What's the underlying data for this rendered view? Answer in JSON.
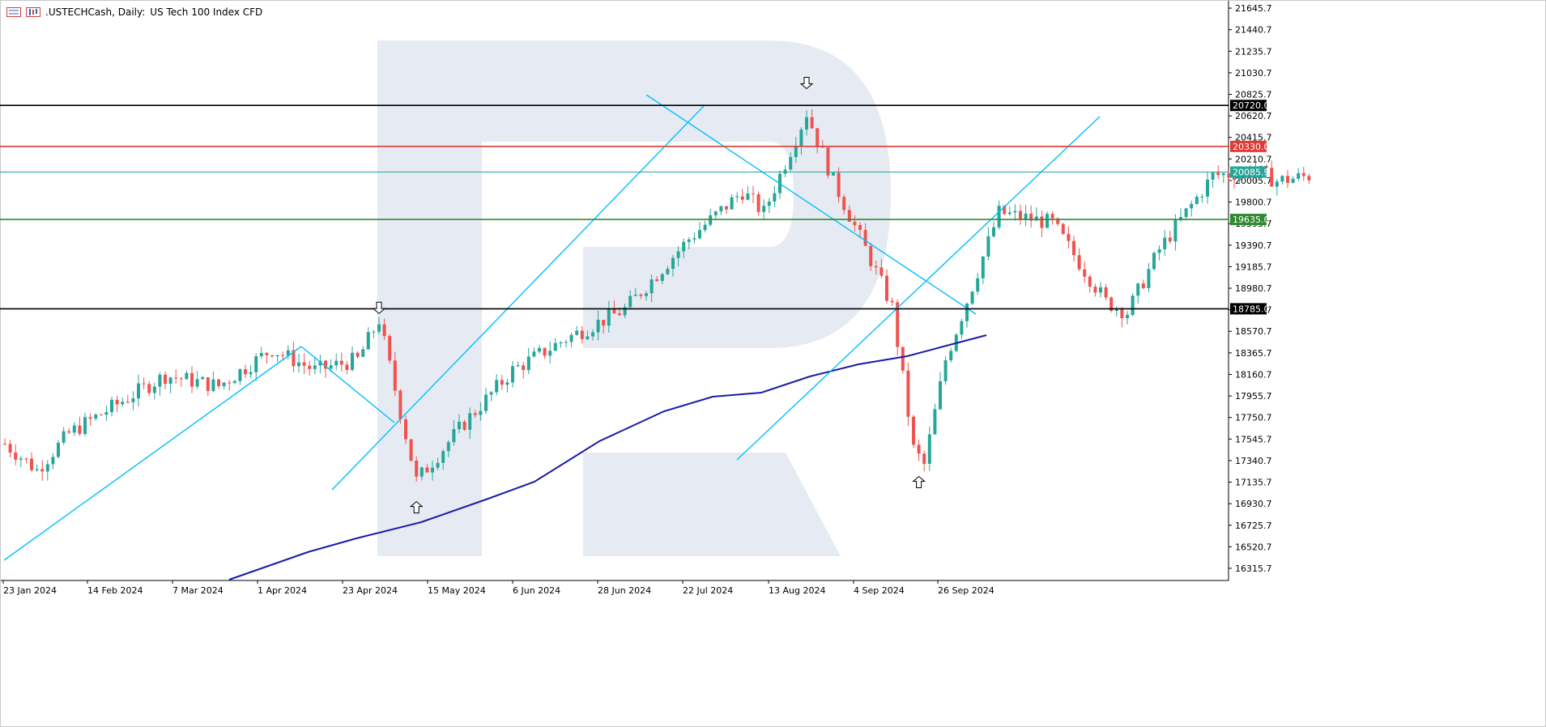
{
  "header": {
    "symbol": ".USTECHCash, Daily:",
    "description": "US Tech 100 Index CFD"
  },
  "colors": {
    "bull": "#26a69a",
    "bear": "#ef5350",
    "trend": "#00bfff",
    "ma": "#1a1aaa",
    "watermark": "#e6ebf3"
  },
  "chart_data": {
    "type": "candlestick",
    "y_ticks": [
      "21645.7",
      "21440.7",
      "21235.7",
      "21030.7",
      "20825.7",
      "20620.7",
      "20415.7",
      "20210.7",
      "20005.7",
      "19800.7",
      "19595.7",
      "19390.7",
      "19185.7",
      "18980.7",
      "18775.7",
      "18570.7",
      "18365.7",
      "18160.7",
      "17955.7",
      "17750.7",
      "17545.7",
      "17340.7",
      "17135.7",
      "16930.7",
      "16725.7",
      "16520.7",
      "16315.7"
    ],
    "x_ticks": [
      "23 Jan 2024",
      "14 Feb 2024",
      "7 Mar 2024",
      "1 Apr 2024",
      "23 Apr 2024",
      "15 May 2024",
      "6 Jun 2024",
      "28 Jun 2024",
      "22 Jul 2024",
      "13 Aug 2024",
      "4 Sep 2024",
      "26 Sep 2024"
    ],
    "ylim": [
      16200,
      21700
    ],
    "levels": [
      {
        "value": 20720.0,
        "label": "20720.0",
        "color": "#000000"
      },
      {
        "value": 20330.0,
        "label": "20330.0",
        "color": "#e53935"
      },
      {
        "value": 20085.9,
        "label": "20085.9",
        "color": "#26a69a"
      },
      {
        "value": 19635.0,
        "label": "19635.0",
        "color": "#2e8b2e"
      },
      {
        "value": 18785.0,
        "label": "18785.0",
        "color": "#000000"
      }
    ],
    "arrows": [
      {
        "bar": 70,
        "direction": "down",
        "value": 18740
      },
      {
        "bar": 77,
        "direction": "up",
        "value": 16950
      },
      {
        "bar": 150,
        "direction": "down",
        "value": 20880
      },
      {
        "bar": 171,
        "direction": "up",
        "value": 17190
      }
    ]
  }
}
